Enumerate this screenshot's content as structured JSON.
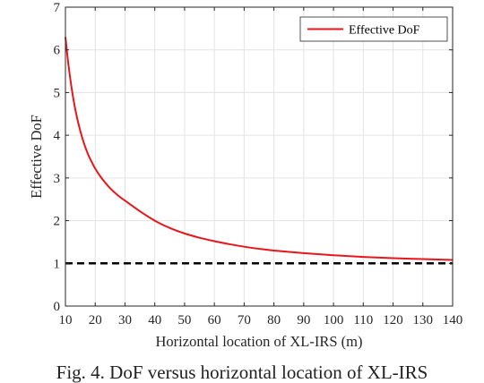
{
  "caption": "Fig. 4. DoF versus horizontal location of XL-IRS",
  "chart_data": {
    "type": "line",
    "title": "",
    "xlabel": "Horizontal location of XL-IRS (m)",
    "ylabel": "Effective DoF",
    "xlim": [
      10,
      140
    ],
    "ylim": [
      0,
      7
    ],
    "xticks": [
      10,
      20,
      30,
      40,
      50,
      60,
      70,
      80,
      90,
      100,
      110,
      120,
      130,
      140
    ],
    "yticks": [
      0,
      1,
      2,
      3,
      4,
      5,
      6,
      7
    ],
    "grid": true,
    "legend_position": "top-right",
    "series": [
      {
        "name": "Effective DoF",
        "color": "#e8161b",
        "style": "solid",
        "x": [
          10,
          11,
          12,
          13,
          14,
          15,
          16,
          17,
          18,
          20,
          22,
          25,
          28,
          30,
          35,
          40,
          45,
          50,
          55,
          60,
          65,
          70,
          75,
          80,
          90,
          100,
          110,
          120,
          130,
          140
        ],
        "y": [
          6.3,
          5.66,
          5.14,
          4.72,
          4.38,
          4.1,
          3.86,
          3.66,
          3.49,
          3.22,
          3.01,
          2.76,
          2.57,
          2.47,
          2.22,
          2.0,
          1.83,
          1.7,
          1.6,
          1.52,
          1.45,
          1.39,
          1.34,
          1.3,
          1.24,
          1.19,
          1.15,
          1.12,
          1.1,
          1.08
        ]
      },
      {
        "name": "",
        "color": "#000000",
        "style": "dashed",
        "x": [
          10,
          140
        ],
        "y": [
          1,
          1
        ]
      }
    ]
  }
}
